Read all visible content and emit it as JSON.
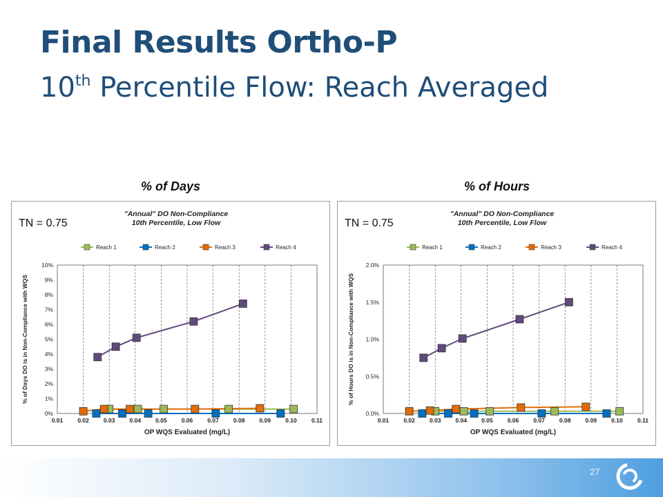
{
  "slide": {
    "title": "Final Results Ortho-P",
    "subtitle_base": "10",
    "subtitle_sup": "th",
    "subtitle_rest": " Percentile Flow: Reach Averaged",
    "label_left": "% of Days",
    "label_right": "% of Hours",
    "page_number": "27"
  },
  "chart_data": [
    {
      "type": "line",
      "annotation": "TN = 0.75",
      "title_line1": "\"Annual\" DO Non-Compliance",
      "title_line2": "10th Percentile, Low Flow",
      "xlabel": "OP WQS Evaluated (mg/L)",
      "ylabel": "% of Days DO is in Non-Compliance with WQS",
      "xlim": [
        0.01,
        0.11
      ],
      "ylim": [
        0,
        10
      ],
      "xticks": [
        "0.01",
        "0.02",
        "0.03",
        "0.04",
        "0.05",
        "0.06",
        "0.07",
        "0.08",
        "0.09",
        "0.10",
        "0.11"
      ],
      "yticks": [
        "0%",
        "1%",
        "2%",
        "3%",
        "4%",
        "5%",
        "6%",
        "7%",
        "8%",
        "9%",
        "10%"
      ],
      "ytick_values": [
        0,
        1,
        2,
        3,
        4,
        5,
        6,
        7,
        8,
        9,
        10
      ],
      "grid": "vertical dashed",
      "legend": "top",
      "series": [
        {
          "name": "Reach 1",
          "color": "#9bbb59",
          "x": [
            0.03,
            0.041,
            0.051,
            0.076,
            0.101
          ],
          "y": [
            0.3,
            0.3,
            0.3,
            0.3,
            0.3
          ]
        },
        {
          "name": "Reach 2",
          "color": "#0070c0",
          "x": [
            0.025,
            0.035,
            0.045,
            0.071,
            0.096
          ],
          "y": [
            0.0,
            0.0,
            0.0,
            0.0,
            0.0
          ]
        },
        {
          "name": "Reach 3",
          "color": "#e36c09",
          "x": [
            0.02,
            0.028,
            0.038,
            0.063,
            0.088
          ],
          "y": [
            0.15,
            0.3,
            0.3,
            0.3,
            0.35
          ]
        },
        {
          "name": "Reach 4",
          "color": "#604a7b",
          "x": [
            0.0255,
            0.0325,
            0.0405,
            0.0625,
            0.0815
          ],
          "y": [
            3.8,
            4.5,
            5.1,
            6.2,
            7.4
          ]
        }
      ]
    },
    {
      "type": "line",
      "annotation": "TN = 0.75",
      "title_line1": "\"Annual\" DO Non-Compliance",
      "title_line2": "10th Percentile, Low Flow",
      "xlabel": "OP WQS Evaluated (mg/L)",
      "ylabel": "% of Hours DO is in Non-Compliance with WQS",
      "xlim": [
        0.01,
        0.11
      ],
      "ylim": [
        0,
        2
      ],
      "xticks": [
        "0.01",
        "0.02",
        "0.03",
        "0.04",
        "0.05",
        "0.06",
        "0.07",
        "0.08",
        "0.09",
        "0.10",
        "0.11"
      ],
      "yticks": [
        "0.0%",
        "0.5%",
        "1.0%",
        "1.5%",
        "2.0%"
      ],
      "ytick_values": [
        0,
        0.5,
        1.0,
        1.5,
        2.0
      ],
      "grid": "vertical dashed",
      "legend": "top",
      "series": [
        {
          "name": "Reach 1",
          "color": "#9bbb59",
          "x": [
            0.03,
            0.041,
            0.051,
            0.076,
            0.101
          ],
          "y": [
            0.03,
            0.03,
            0.03,
            0.03,
            0.03
          ]
        },
        {
          "name": "Reach 2",
          "color": "#0070c0",
          "x": [
            0.025,
            0.035,
            0.045,
            0.071,
            0.096
          ],
          "y": [
            0.0,
            0.0,
            0.0,
            0.0,
            0.0
          ]
        },
        {
          "name": "Reach 3",
          "color": "#e36c09",
          "x": [
            0.02,
            0.028,
            0.038,
            0.063,
            0.088
          ],
          "y": [
            0.03,
            0.04,
            0.06,
            0.08,
            0.09
          ]
        },
        {
          "name": "Reach 4",
          "color": "#604a7b",
          "x": [
            0.0255,
            0.0325,
            0.0405,
            0.0625,
            0.0815
          ],
          "y": [
            0.75,
            0.88,
            1.01,
            1.27,
            1.5
          ]
        }
      ]
    }
  ]
}
